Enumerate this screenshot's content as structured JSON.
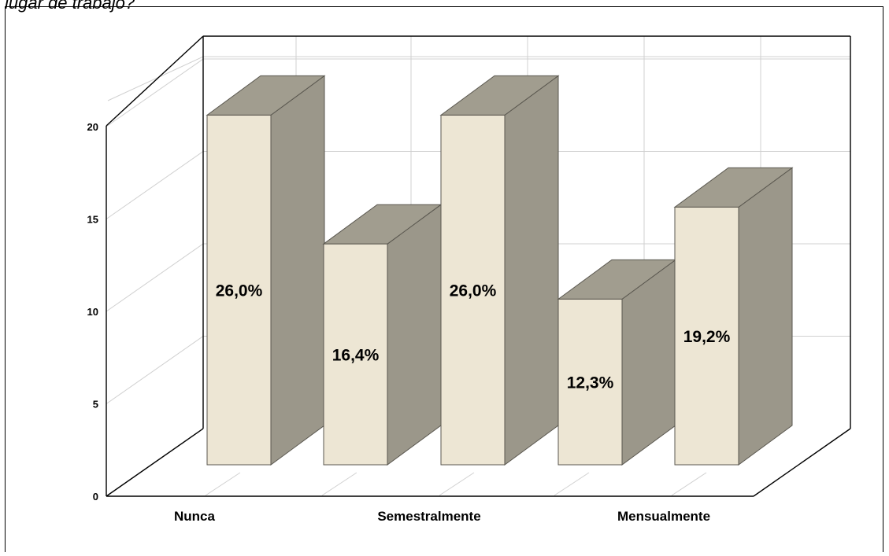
{
  "caption": "lugar de trabajo?",
  "chart_data": {
    "type": "bar",
    "categories": [
      "",
      "",
      "",
      "",
      ""
    ],
    "values": [
      19,
      12,
      19,
      9,
      14
    ],
    "data_labels": [
      "26,0%",
      "16,4%",
      "26,0%",
      "12,3%",
      "19,2%"
    ],
    "axis_categories_shown": [
      "Nunca",
      "Semestralmente",
      "Mensualmente"
    ],
    "yticks": [
      0,
      5,
      10,
      15,
      20
    ],
    "ylim": [
      0,
      20
    ],
    "grid": true,
    "three_d": true,
    "title": "",
    "xlabel": "",
    "ylabel": "",
    "colors": {
      "bar_front": "#EDE6D4",
      "bar_side": "#9B978A",
      "bar_top": "#A19D8F",
      "bar_edge": "#5A574F",
      "grid": "#D0D0D0",
      "frame": "#000000"
    }
  }
}
